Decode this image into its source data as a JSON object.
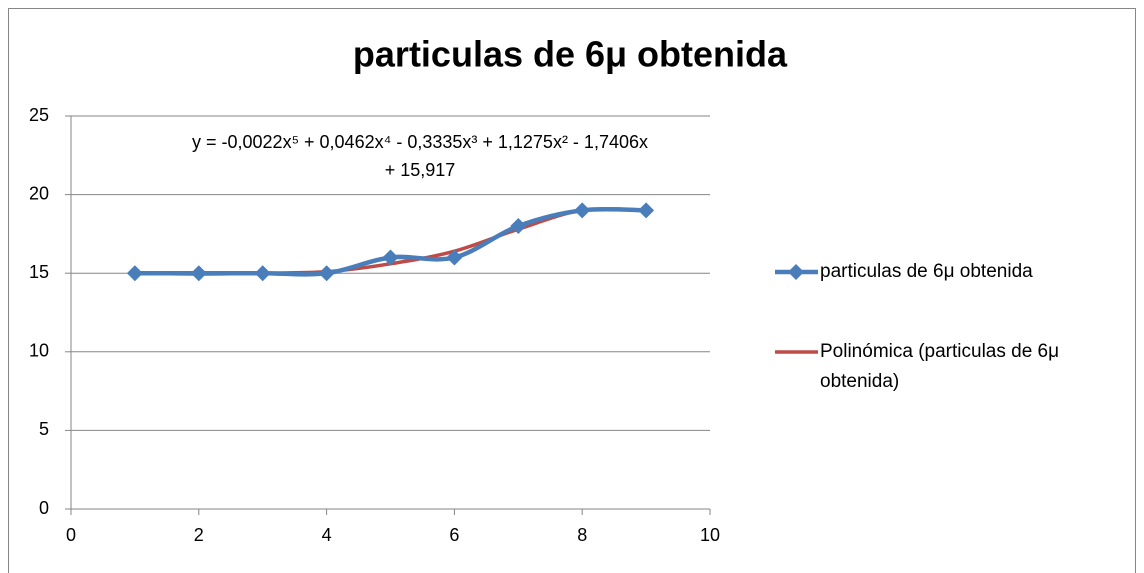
{
  "chart_data": {
    "type": "scatter",
    "title": "particulas de 6μ obtenida",
    "x": [
      1,
      2,
      3,
      4,
      5,
      6,
      7,
      8,
      9
    ],
    "series": [
      {
        "name": "particulas de 6μ obtenida",
        "color": "#4a7ebb",
        "values": [
          15,
          15,
          15,
          15,
          16,
          16,
          18,
          19,
          19
        ]
      },
      {
        "name": "Polinómica (particulas de 6μ obtenida)",
        "color": "#be4b48",
        "values": [
          15,
          14.95,
          15,
          15.1,
          15.6,
          16.4,
          17.8,
          19,
          19
        ]
      }
    ],
    "annotations": [
      "y = -0,0022x⁵ + 0,0462x⁴ - 0,3335x³ + 1,1275x² - 1,7406x",
      "+ 15,917"
    ],
    "xlim": [
      0,
      10
    ],
    "xticks": [
      0,
      2,
      4,
      6,
      8,
      10
    ],
    "ylim": [
      0,
      25
    ],
    "yticks": [
      0,
      5,
      10,
      15,
      20,
      25
    ],
    "grid": true,
    "legend": "right"
  }
}
